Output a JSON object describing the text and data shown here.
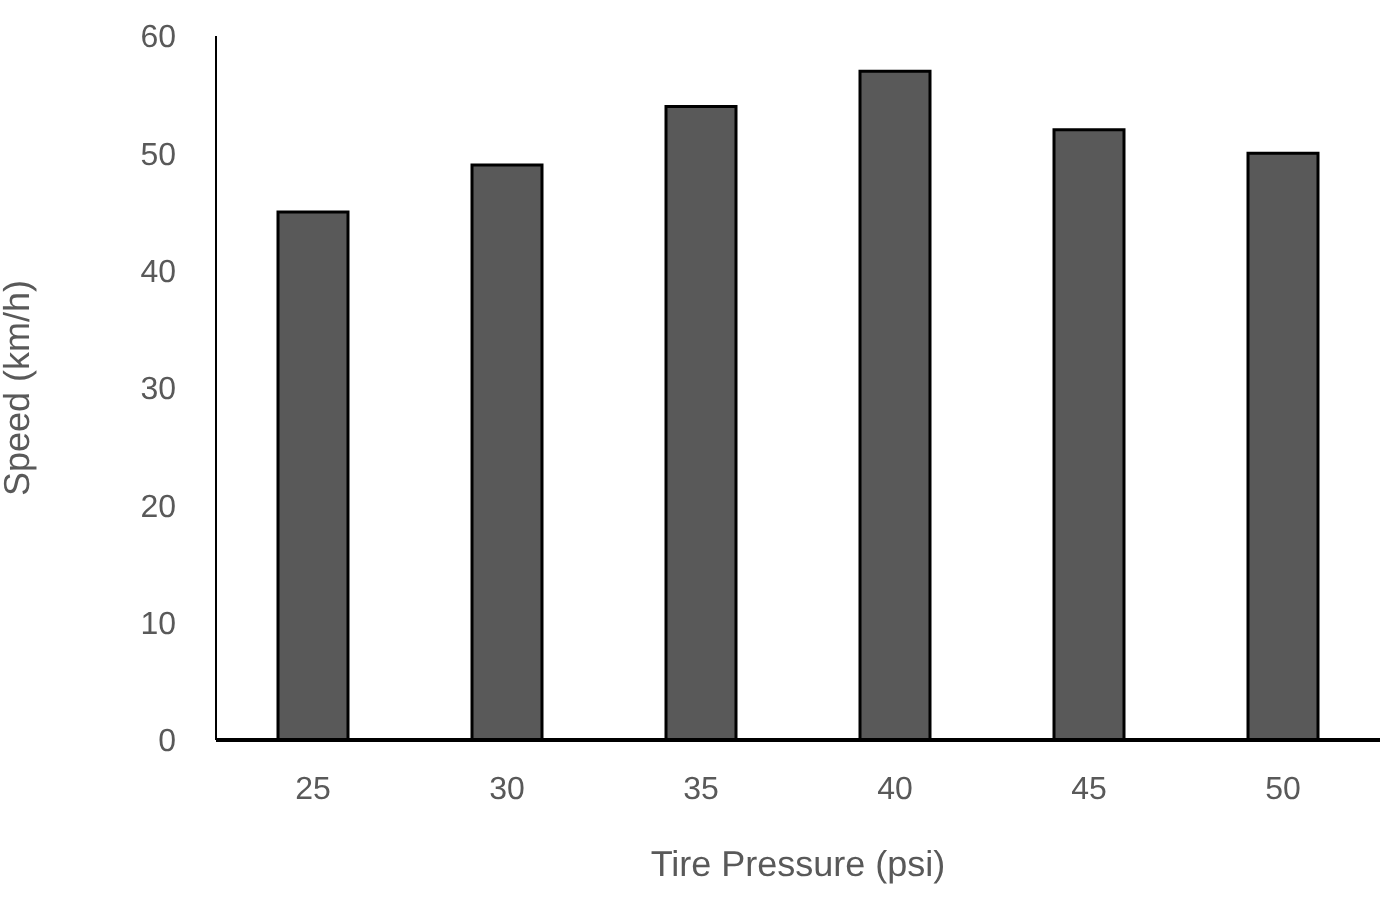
{
  "chart_data": {
    "type": "bar",
    "xlabel": "Tire Pressure (psi)",
    "ylabel": "Speed (km/h)",
    "categories": [
      "25",
      "30",
      "35",
      "40",
      "45",
      "50"
    ],
    "values": [
      45,
      49,
      54,
      57,
      52,
      50
    ],
    "color": "#595959",
    "ylim": [
      0,
      60
    ],
    "yticks": [
      0,
      10,
      20,
      30,
      40,
      50,
      60
    ],
    "grid": false,
    "legend": false
  }
}
